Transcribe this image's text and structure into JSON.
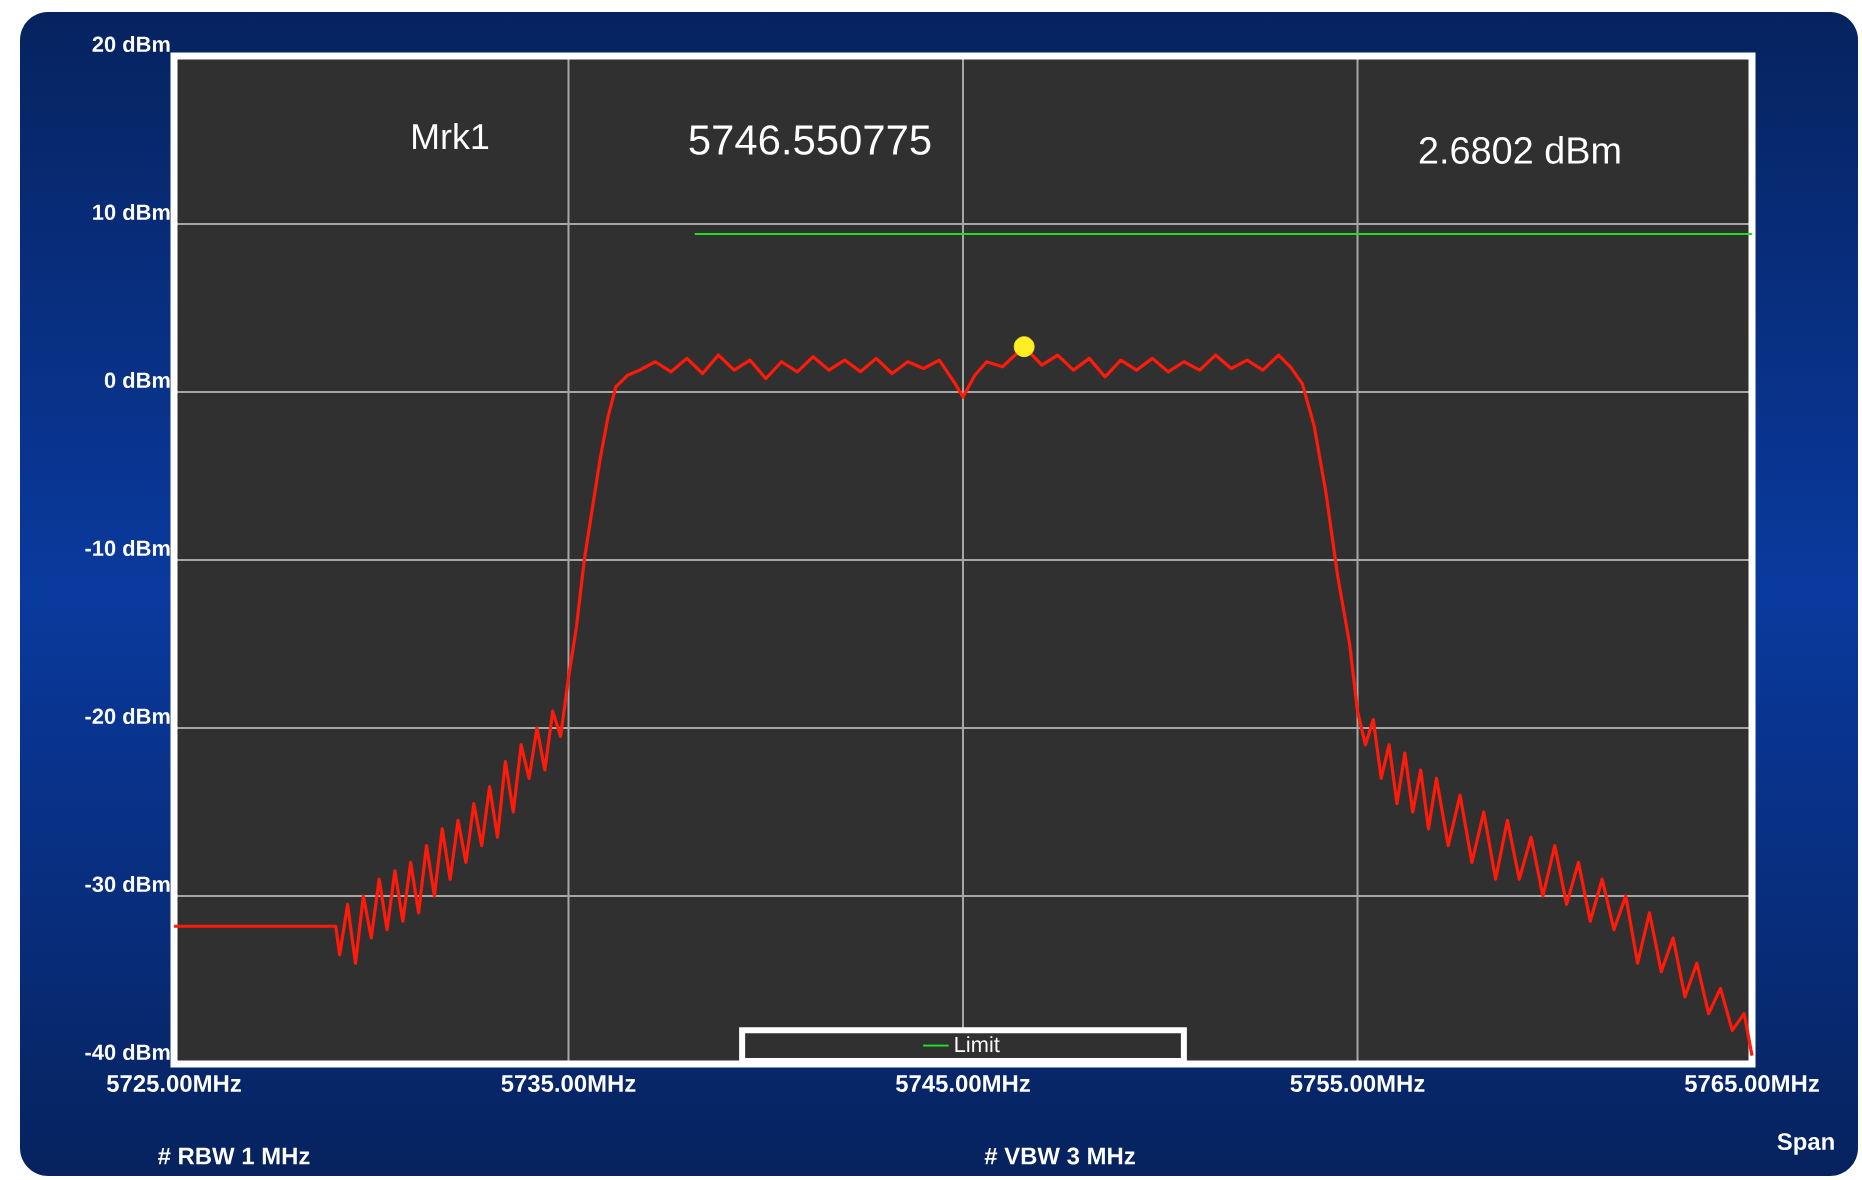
{
  "chart_data": {
    "type": "line",
    "annotations": [
      "Mrk1",
      "5746.550775",
      "2.6802 dBm",
      "# RBW 1 MHz",
      "# VBW 3 MHz",
      "Span"
    ],
    "xlim": [
      5725,
      5765
    ],
    "ylim": [
      -40,
      20
    ],
    "xticks": [
      {
        "value": 5725,
        "label": "5725.00MHz"
      },
      {
        "value": 5735,
        "label": "5735.00MHz"
      },
      {
        "value": 5745,
        "label": "5745.00MHz"
      },
      {
        "value": 5755,
        "label": "5755.00MHz"
      },
      {
        "value": 5765,
        "label": "5765.00MHz"
      }
    ],
    "yticks": [
      {
        "value": 20,
        "label": "20 dBm"
      },
      {
        "value": 10,
        "label": "10 dBm"
      },
      {
        "value": 0,
        "label": "0 dBm"
      },
      {
        "value": -10,
        "label": "-10 dBm"
      },
      {
        "value": -20,
        "label": "-20 dBm"
      },
      {
        "value": -30,
        "label": "-30 dBm"
      },
      {
        "value": -40,
        "label": "-40 dBm"
      }
    ],
    "grid": true,
    "legend": "bottom",
    "marker": "none",
    "line_style": "solid",
    "series": [
      {
        "color": "#ff1a0a",
        "x": [
          5725,
          5729.1,
          5729.2,
          5729.4,
          5729.6,
          5729.8,
          5730.0,
          5730.2,
          5730.4,
          5730.6,
          5730.8,
          5731.0,
          5731.2,
          5731.4,
          5731.6,
          5731.8,
          5732.0,
          5732.2,
          5732.4,
          5732.6,
          5732.8,
          5733.0,
          5733.2,
          5733.4,
          5733.6,
          5733.8,
          5734.0,
          5734.2,
          5734.4,
          5734.6,
          5734.8,
          5735.0,
          5735.2,
          5735.4,
          5735.6,
          5735.8,
          5736.0,
          5736.2,
          5736.5,
          5736.8,
          5737.2,
          5737.6,
          5738,
          5738.4,
          5738.8,
          5739.2,
          5739.6,
          5740,
          5740.4,
          5740.8,
          5741.2,
          5741.6,
          5742,
          5742.4,
          5742.8,
          5743.2,
          5743.6,
          5744,
          5744.4,
          5744.8,
          5745.0,
          5745.3,
          5745.6,
          5746.0,
          5746.55,
          5747,
          5747.4,
          5747.8,
          5748.2,
          5748.6,
          5749,
          5749.4,
          5749.8,
          5750.2,
          5750.6,
          5751,
          5751.4,
          5751.8,
          5752.2,
          5752.6,
          5753,
          5753.3,
          5753.6,
          5753.9,
          5754.2,
          5754.5,
          5754.8,
          5755.0,
          5755.2,
          5755.4,
          5755.6,
          5755.8,
          5756.0,
          5756.2,
          5756.4,
          5756.6,
          5756.8,
          5757.0,
          5757.3,
          5757.6,
          5757.9,
          5758.2,
          5758.5,
          5758.8,
          5759.1,
          5759.4,
          5759.7,
          5760.0,
          5760.3,
          5760.6,
          5760.9,
          5761.2,
          5761.5,
          5761.8,
          5762.1,
          5762.4,
          5762.7,
          5763.0,
          5763.3,
          5763.6,
          5763.9,
          5764.2,
          5764.5,
          5764.8,
          5765
        ],
        "values": [
          -31.8,
          -31.8,
          -33.5,
          -30.5,
          -34,
          -30,
          -32.5,
          -29,
          -32,
          -28.5,
          -31.5,
          -28,
          -31,
          -27,
          -30,
          -26,
          -29,
          -25.5,
          -28,
          -24.5,
          -27,
          -23.5,
          -26.5,
          -22,
          -25,
          -21,
          -23,
          -20,
          -22.5,
          -19,
          -20.5,
          -17,
          -14,
          -10,
          -7,
          -4,
          -1.5,
          0.3,
          1.0,
          1.3,
          1.8,
          1.2,
          2.0,
          1.1,
          2.2,
          1.3,
          1.9,
          0.8,
          1.8,
          1.2,
          2.1,
          1.3,
          1.9,
          1.2,
          2.0,
          1.1,
          1.8,
          1.4,
          1.9,
          0.5,
          -0.3,
          1.0,
          1.8,
          1.5,
          2.7,
          1.6,
          2.2,
          1.3,
          2.0,
          0.9,
          1.9,
          1.3,
          2.0,
          1.2,
          1.8,
          1.3,
          2.2,
          1.4,
          1.9,
          1.3,
          2.2,
          1.5,
          0.5,
          -2,
          -6,
          -11,
          -15,
          -19,
          -21,
          -19.5,
          -23,
          -21,
          -24.5,
          -21.5,
          -25,
          -22.5,
          -26,
          -23,
          -27,
          -24,
          -28,
          -25,
          -29,
          -25.5,
          -29,
          -26.5,
          -30,
          -27,
          -30.5,
          -28,
          -31.5,
          -29,
          -32,
          -30,
          -34,
          -31,
          -34.5,
          -32.5,
          -36,
          -34,
          -37,
          -35.5,
          -38,
          -37,
          -39.5
        ]
      },
      {
        "name": "Limit",
        "color": "#22dd22",
        "x": [
          5738.2,
          5765
        ],
        "values": [
          9.4,
          9.4
        ]
      },
      {
        "type": "scatter",
        "marker": "circle",
        "color": "#ffee22",
        "x": [
          5746.55
        ],
        "values": [
          2.7
        ]
      }
    ]
  }
}
